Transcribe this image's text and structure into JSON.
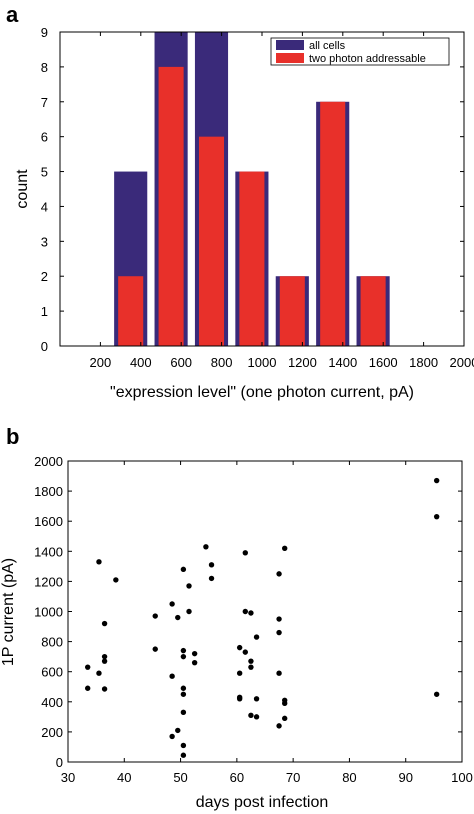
{
  "chart_data": [
    {
      "type": "bar",
      "panel_label": "a",
      "title": "",
      "xlabel": "\"expression level\" (one photon current, pA)",
      "ylabel": "count",
      "xlim": [
        0,
        2000
      ],
      "ylim": [
        0,
        9
      ],
      "xticks": [
        200,
        400,
        600,
        800,
        1000,
        1200,
        1400,
        1600,
        1800,
        2000
      ],
      "yticks": [
        0,
        1,
        2,
        3,
        4,
        5,
        6,
        7,
        8,
        9
      ],
      "categories": [
        350,
        550,
        750,
        950,
        1150,
        1350,
        1550
      ],
      "series": [
        {
          "name": "all cells",
          "color": "#3a2a7a",
          "values": [
            5,
            9,
            9,
            5,
            2,
            7,
            2
          ]
        },
        {
          "name": "two photon addressable",
          "color": "#e8302a",
          "values": [
            2,
            8,
            6,
            5,
            2,
            7,
            2
          ]
        }
      ],
      "legend": "top-right",
      "grid": false
    },
    {
      "type": "scatter",
      "panel_label": "b",
      "title": "",
      "xlabel": "days post infection",
      "ylabel": "1P current (pA)",
      "xlim": [
        30,
        100
      ],
      "ylim": [
        0,
        2000
      ],
      "xticks": [
        30,
        40,
        50,
        60,
        70,
        80,
        90,
        100
      ],
      "yticks": [
        0,
        200,
        400,
        600,
        800,
        1000,
        1200,
        1400,
        1600,
        1800,
        2000
      ],
      "points": [
        [
          33.5,
          630
        ],
        [
          33.5,
          490
        ],
        [
          35.5,
          1330
        ],
        [
          35.5,
          590
        ],
        [
          36.5,
          920
        ],
        [
          36.5,
          700
        ],
        [
          36.5,
          670
        ],
        [
          36.5,
          485
        ],
        [
          38.5,
          1210
        ],
        [
          45.5,
          970
        ],
        [
          45.5,
          750
        ],
        [
          48.5,
          1050
        ],
        [
          48.5,
          570
        ],
        [
          48.5,
          170
        ],
        [
          49.5,
          960
        ],
        [
          49.5,
          210
        ],
        [
          50.5,
          1280
        ],
        [
          50.5,
          740
        ],
        [
          50.5,
          700
        ],
        [
          50.5,
          490
        ],
        [
          50.5,
          450
        ],
        [
          50.5,
          330
        ],
        [
          50.5,
          110
        ],
        [
          50.5,
          45
        ],
        [
          51.5,
          1000
        ],
        [
          51.5,
          1170
        ],
        [
          52.5,
          720
        ],
        [
          52.5,
          660
        ],
        [
          54.5,
          1430
        ],
        [
          55.5,
          1310
        ],
        [
          55.5,
          1220
        ],
        [
          60.5,
          760
        ],
        [
          60.5,
          590
        ],
        [
          60.5,
          430
        ],
        [
          60.5,
          420
        ],
        [
          61.5,
          1390
        ],
        [
          61.5,
          1000
        ],
        [
          61.5,
          730
        ],
        [
          62.5,
          990
        ],
        [
          62.5,
          670
        ],
        [
          62.5,
          630
        ],
        [
          62.5,
          310
        ],
        [
          63.5,
          830
        ],
        [
          63.5,
          420
        ],
        [
          63.5,
          300
        ],
        [
          67.5,
          1250
        ],
        [
          67.5,
          950
        ],
        [
          67.5,
          860
        ],
        [
          67.5,
          590
        ],
        [
          67.5,
          240
        ],
        [
          68.5,
          1420
        ],
        [
          68.5,
          410
        ],
        [
          68.5,
          390
        ],
        [
          68.5,
          290
        ],
        [
          95.5,
          1870
        ],
        [
          95.5,
          1630
        ],
        [
          95.5,
          450
        ]
      ],
      "marker_color": "#000000",
      "grid": false
    }
  ]
}
